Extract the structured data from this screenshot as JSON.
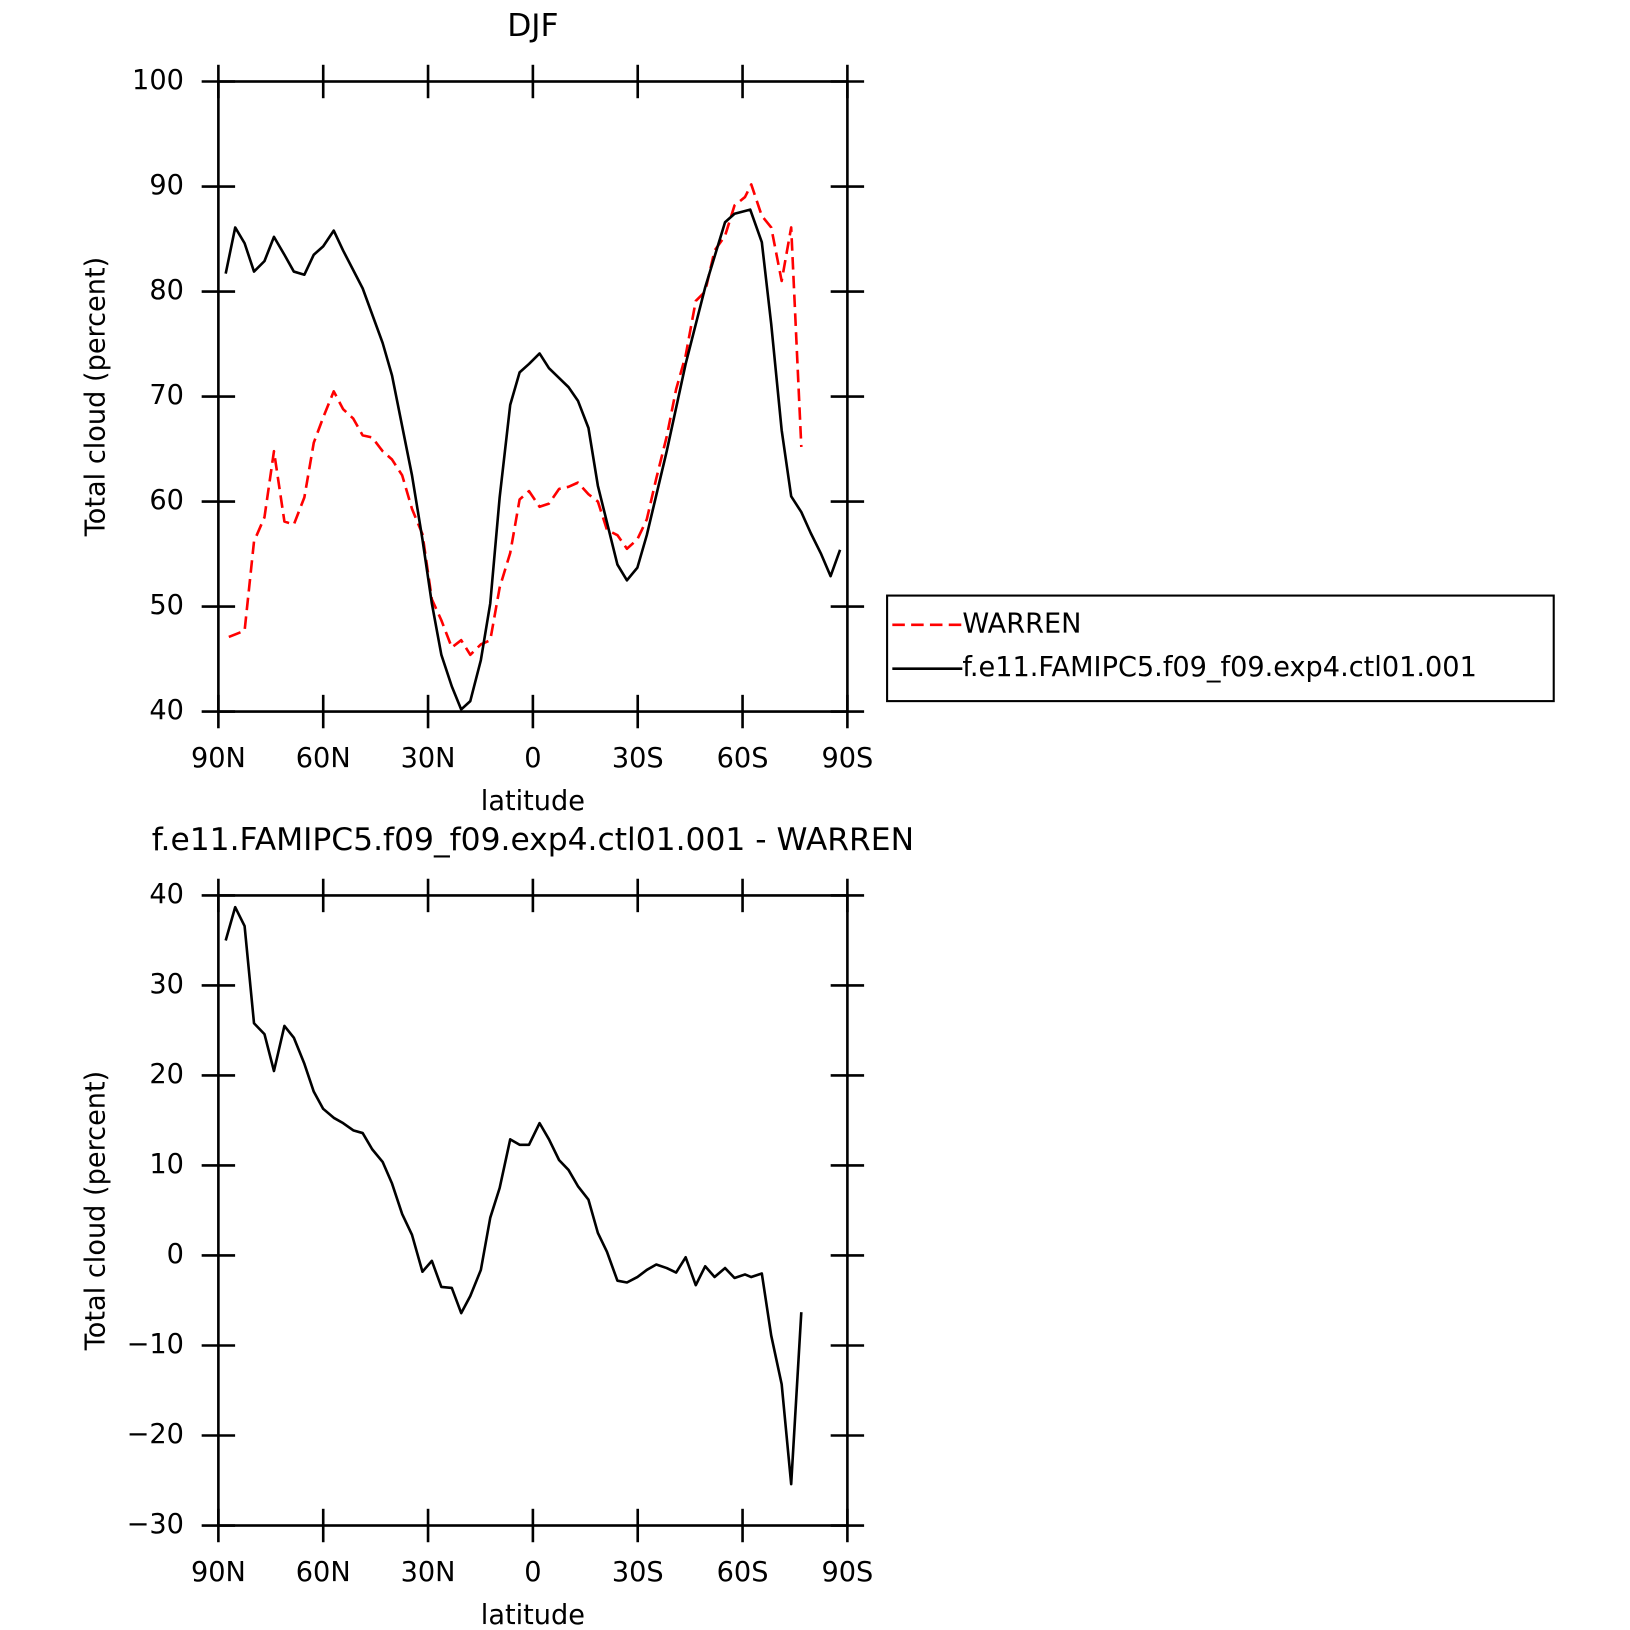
{
  "chart_data": [
    {
      "type": "line",
      "title": "DJF",
      "xlabel": "latitude",
      "ylabel": "Total cloud (percent)",
      "xlim": [
        90,
        -90
      ],
      "xticks": [
        {
          "value": 90,
          "label": "90N"
        },
        {
          "value": 60,
          "label": "60N"
        },
        {
          "value": 30,
          "label": "30N"
        },
        0,
        {
          "value": -30,
          "label": "30S"
        },
        {
          "value": -60,
          "label": "60S"
        },
        {
          "value": -90,
          "label": "90S"
        }
      ],
      "ylim": [
        40,
        100
      ],
      "yticks": [
        40,
        50,
        60,
        70,
        80,
        90,
        100
      ],
      "legend": "outside right",
      "series": [
        {
          "name": "WARREN",
          "color": "#ff0000",
          "linestyle": "dashed",
          "x": [
            87.0,
            82.5,
            79.8,
            76.8,
            74.1,
            71.1,
            68.4,
            65.4,
            62.7,
            60.0,
            57.0,
            54.3,
            51.4,
            48.7,
            46.0,
            43.0,
            40.3,
            37.4,
            34.6,
            31.6,
            28.9,
            26.2,
            23.2,
            20.5,
            17.9,
            14.9,
            12.2,
            9.5,
            6.5,
            3.8,
            1.1,
            -1.9,
            -4.6,
            -7.5,
            -10.2,
            -12.9,
            -15.9,
            -18.6,
            -21.2,
            -24.2,
            -26.9,
            -29.9,
            -32.6,
            -35.3,
            -38.3,
            -41.0,
            -43.7,
            -46.6,
            -49.3,
            -52.0,
            -55.0,
            -57.7,
            -60.7,
            -62.5,
            -65.5,
            -68.2,
            -71.2,
            -73.9,
            -76.8
          ],
          "values": [
            47.1,
            47.7,
            56.2,
            58.5,
            64.8,
            58.1,
            57.8,
            60.4,
            65.6,
            68.0,
            70.5,
            68.8,
            67.9,
            66.3,
            66.1,
            64.8,
            64.0,
            62.5,
            59.3,
            56.9,
            50.7,
            48.7,
            46.1,
            46.8,
            45.4,
            46.4,
            46.8,
            51.8,
            55.1,
            60.2,
            61.0,
            59.5,
            59.8,
            61.2,
            61.4,
            61.8,
            60.7,
            60.0,
            57.3,
            56.8,
            55.5,
            56.4,
            58.3,
            62.2,
            66.2,
            70.7,
            73.9,
            79.1,
            80.0,
            83.9,
            85.3,
            88.2,
            89.0,
            90.2,
            87.2,
            86.1,
            81.0,
            86.1,
            65.2
          ]
        },
        {
          "name": "f.e11.FAMIPC5.f09_f09.exp4.ctl01.001",
          "color": "#000000",
          "linestyle": "solid",
          "x": [
            87.9,
            85.2,
            82.5,
            79.8,
            76.8,
            74.1,
            71.1,
            68.4,
            65.4,
            62.7,
            60.0,
            57.0,
            54.3,
            48.7,
            43.0,
            40.3,
            34.6,
            31.6,
            28.9,
            26.2,
            23.2,
            20.5,
            17.9,
            14.9,
            12.2,
            9.5,
            6.5,
            3.8,
            1.1,
            -1.9,
            -4.6,
            -10.2,
            -12.9,
            -15.9,
            -18.6,
            -24.2,
            -26.9,
            -29.9,
            -32.6,
            -38.3,
            -43.7,
            -49.3,
            -55.0,
            -57.7,
            -62.2,
            -65.5,
            -68.2,
            -71.2,
            -73.9,
            -76.8,
            -79.5,
            -82.5,
            -85.2,
            -87.9
          ],
          "values": [
            81.7,
            86.1,
            84.6,
            81.9,
            82.9,
            85.2,
            83.5,
            81.9,
            81.6,
            83.5,
            84.3,
            85.8,
            83.9,
            80.3,
            75.1,
            72.0,
            62.5,
            56.4,
            50.3,
            45.4,
            42.4,
            40.2,
            41.0,
            44.9,
            50.3,
            60.4,
            69.2,
            72.3,
            73.1,
            74.1,
            72.7,
            70.9,
            69.6,
            67.0,
            61.5,
            54.0,
            52.5,
            53.7,
            56.8,
            64.8,
            73.1,
            80.4,
            86.6,
            87.4,
            87.8,
            84.7,
            76.9,
            66.8,
            60.5,
            59.0,
            57.0,
            55.0,
            52.9,
            55.4
          ]
        }
      ]
    },
    {
      "type": "line",
      "title": "f.e11.FAMIPC5.f09_f09.exp4.ctl01.001 - WARREN",
      "xlabel": "latitude",
      "ylabel": "Total cloud (percent)",
      "xlim": [
        90,
        -90
      ],
      "xticks": [
        {
          "value": 90,
          "label": "90N"
        },
        {
          "value": 60,
          "label": "60N"
        },
        {
          "value": 30,
          "label": "30N"
        },
        0,
        {
          "value": -30,
          "label": "30S"
        },
        {
          "value": -60,
          "label": "60S"
        },
        {
          "value": -90,
          "label": "90S"
        }
      ],
      "ylim": [
        -30,
        40
      ],
      "yticks": [
        {
          "value": -30,
          "label": "−30"
        },
        {
          "value": -20,
          "label": "−20"
        },
        {
          "value": -10,
          "label": "−10"
        },
        0,
        10,
        20,
        30,
        40
      ],
      "series": [
        {
          "color": "#000000",
          "linestyle": "solid",
          "x": [
            87.9,
            85.2,
            82.5,
            79.8,
            76.8,
            74.1,
            71.1,
            68.4,
            65.4,
            62.7,
            60.0,
            57.0,
            54.3,
            51.4,
            48.7,
            46.0,
            43.0,
            40.3,
            37.4,
            34.6,
            31.6,
            28.9,
            26.2,
            23.2,
            20.5,
            17.9,
            14.9,
            12.2,
            9.5,
            6.5,
            3.8,
            1.1,
            -1.9,
            -4.6,
            -7.5,
            -10.2,
            -12.9,
            -15.9,
            -18.6,
            -21.2,
            -24.2,
            -26.9,
            -29.9,
            -32.6,
            -35.3,
            -38.3,
            -41.0,
            -43.7,
            -46.6,
            -49.3,
            -52.0,
            -55.0,
            -57.7,
            -60.7,
            -62.5,
            -65.5,
            -68.2,
            -71.2,
            -73.9,
            -76.8
          ],
          "values": [
            35.0,
            38.7,
            36.6,
            25.8,
            24.6,
            20.5,
            25.5,
            24.2,
            21.3,
            18.2,
            16.3,
            15.3,
            14.7,
            13.9,
            13.6,
            11.8,
            10.4,
            8.0,
            4.6,
            2.3,
            -1.8,
            -0.6,
            -3.5,
            -3.6,
            -6.4,
            -4.5,
            -1.6,
            4.2,
            7.5,
            12.9,
            12.3,
            12.3,
            14.7,
            12.9,
            10.6,
            9.5,
            7.7,
            6.2,
            2.5,
            0.4,
            -2.8,
            -3.0,
            -2.4,
            -1.6,
            -1.0,
            -1.4,
            -1.9,
            -0.2,
            -3.3,
            -1.2,
            -2.4,
            -1.4,
            -2.5,
            -2.1,
            -2.4,
            -2.0,
            -8.9,
            -14.3,
            -25.4,
            -6.3
          ]
        }
      ]
    }
  ]
}
